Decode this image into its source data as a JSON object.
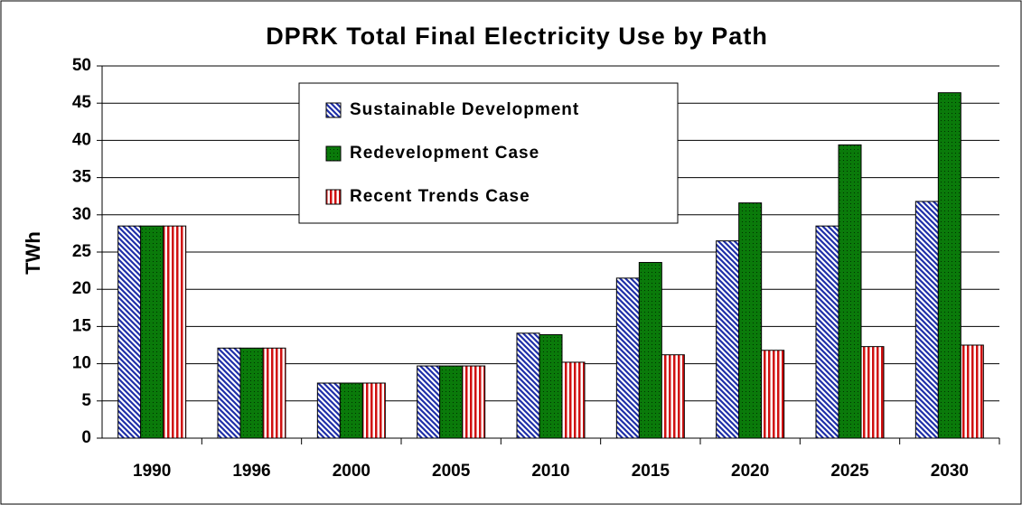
{
  "chart_data": {
    "type": "bar",
    "title": "DPRK Total Final Electricity Use by Path",
    "y_label": "TWh",
    "categories": [
      "1990",
      "1996",
      "2000",
      "2005",
      "2010",
      "2015",
      "2020",
      "2025",
      "2030"
    ],
    "series": [
      {
        "name": "Sustainable Development",
        "color": "#1f2fa8",
        "pattern": "diagonal",
        "values": [
          28.5,
          12.1,
          7.4,
          9.7,
          14.1,
          21.5,
          26.5,
          28.5,
          31.8
        ]
      },
      {
        "name": "Redevelopment Case",
        "color": "#0a7a0a",
        "pattern": "dots",
        "values": [
          28.5,
          12.1,
          7.4,
          9.7,
          13.9,
          23.6,
          31.6,
          39.4,
          46.4
        ]
      },
      {
        "name": "Recent Trends Case",
        "color": "#d01010",
        "pattern": "vertical",
        "values": [
          28.5,
          12.1,
          7.4,
          9.7,
          10.2,
          11.2,
          11.8,
          12.3,
          12.5
        ]
      }
    ],
    "ylim": [
      0,
      50
    ],
    "yticks": [
      0,
      5,
      10,
      15,
      20,
      25,
      30,
      35,
      40,
      45,
      50
    ],
    "grid": true
  }
}
